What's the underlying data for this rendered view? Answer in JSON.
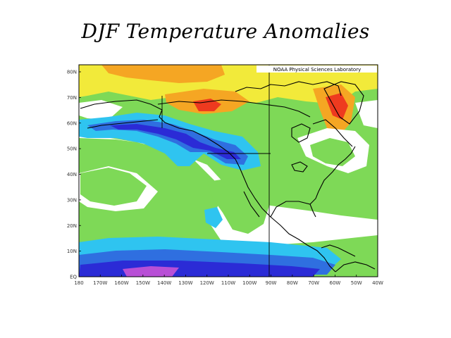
{
  "slide": {
    "title": "DJF Temperature Anomalies"
  },
  "map": {
    "source_label": "NOAA Physical Sciences Laboratory",
    "lat_labels": [
      "80N",
      "70N",
      "60N",
      "50N",
      "40N",
      "30N",
      "20N",
      "10N",
      "EQ"
    ],
    "lon_labels": [
      "180",
      "170W",
      "160W",
      "150W",
      "140W",
      "130W",
      "120W",
      "110W",
      "100W",
      "90W",
      "80W",
      "70W",
      "60W",
      "50W",
      "40W"
    ],
    "colors": {
      "deep_blue": "#2b2bd6",
      "blue": "#2f6fe0",
      "light_blue": "#2fc4f0",
      "white": "#ffffff",
      "green": "#7ed957",
      "yellow": "#f2ea3a",
      "orange": "#f5a623",
      "red": "#ee3a1f",
      "purple": "#b84fd6",
      "coast": "#000000",
      "frame": "#000000"
    }
  }
}
